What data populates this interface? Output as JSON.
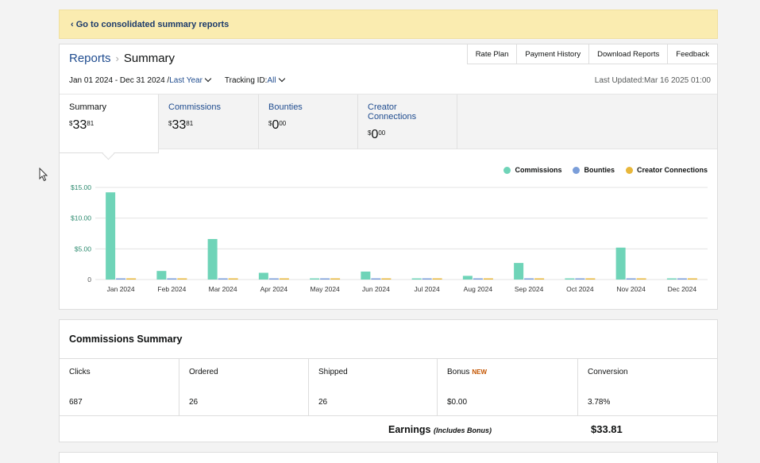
{
  "banner": {
    "link": "‹ Go to consolidated summary reports"
  },
  "header": {
    "breadcrumb_root": "Reports",
    "breadcrumb_sep": "›",
    "breadcrumb_current": "Summary",
    "buttons": [
      "Rate Plan",
      "Payment History",
      "Download Reports",
      "Feedback"
    ]
  },
  "filters": {
    "date_range": "Jan 01 2024 - Dec 31 2024 /",
    "period": "Last Year",
    "tracking_label": "Tracking ID:",
    "tracking_value": "All",
    "last_updated": "Last Updated:Mar 16 2025 01:00"
  },
  "tabs": [
    {
      "label": "Summary",
      "currency": "$",
      "whole": "33",
      "cents": "81"
    },
    {
      "label": "Commissions",
      "currency": "$",
      "whole": "33",
      "cents": "81"
    },
    {
      "label": "Bounties",
      "currency": "$",
      "whole": "0",
      "cents": "00"
    },
    {
      "label": "Creator Connections",
      "currency": "$",
      "whole": "0",
      "cents": "00"
    }
  ],
  "legend": [
    {
      "name": "Commissions",
      "color": "#6fd4b8"
    },
    {
      "name": "Bounties",
      "color": "#7b9ed9"
    },
    {
      "name": "Creator Connections",
      "color": "#e8b73b"
    }
  ],
  "chart_data": {
    "type": "bar",
    "categories": [
      "Jan 2024",
      "Feb 2024",
      "Mar 2024",
      "Apr 2024",
      "May 2024",
      "Jun 2024",
      "Jul 2024",
      "Aug 2024",
      "Sep 2024",
      "Oct 2024",
      "Nov 2024",
      "Dec 2024"
    ],
    "series": [
      {
        "name": "Commissions",
        "values": [
          14.2,
          1.4,
          6.6,
          1.1,
          0.1,
          1.3,
          0.1,
          0.6,
          2.7,
          0.1,
          5.2,
          0.1
        ]
      },
      {
        "name": "Bounties",
        "values": [
          0,
          0,
          0,
          0,
          0,
          0,
          0,
          0,
          0,
          0,
          0,
          0
        ]
      },
      {
        "name": "Creator Connections",
        "values": [
          0,
          0,
          0,
          0,
          0,
          0,
          0,
          0,
          0,
          0,
          0,
          0
        ]
      }
    ],
    "yticks": [
      "0",
      "$5.00",
      "$10.00",
      "$15.00"
    ],
    "ylim": [
      0,
      15
    ],
    "grid": true,
    "legend_position": "top-right"
  },
  "commissions_summary": {
    "title": "Commissions Summary",
    "metrics": [
      {
        "label": "Clicks",
        "value": "687"
      },
      {
        "label": "Ordered",
        "value": "26"
      },
      {
        "label": "Shipped",
        "value": "26"
      },
      {
        "label": "Bonus",
        "badge": "NEW",
        "value": "$0.00"
      },
      {
        "label": "Conversion",
        "value": "3.78%"
      }
    ],
    "earnings_label": "Earnings",
    "earnings_note": "(Includes Bonus)",
    "earnings_value": "$33.81"
  }
}
